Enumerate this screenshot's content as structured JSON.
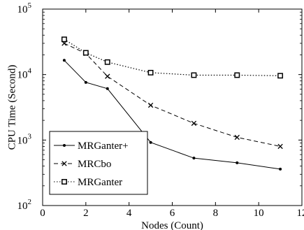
{
  "chart_data": {
    "type": "line",
    "xlabel": "Nodes (Count)",
    "ylabel": "CPU Time (Second)",
    "xlim": [
      0,
      12
    ],
    "ylim": [
      100,
      100000
    ],
    "yscale": "log",
    "grid": false,
    "legend_position": "bottom-left",
    "x_ticks": [
      0,
      2,
      4,
      6,
      8,
      10,
      12
    ],
    "x_tick_labels": [
      "0",
      "2",
      "4",
      "6",
      "8",
      "10",
      "12"
    ],
    "y_ticks": [
      100,
      1000,
      10000,
      100000
    ],
    "y_tick_exponents": [
      "2",
      "3",
      "4",
      "5"
    ],
    "y_tick_base": "10",
    "series": [
      {
        "name": "MRGanter+",
        "style": "solid",
        "marker": "dot",
        "color": "#000000",
        "x": [
          1,
          2,
          3,
          5,
          7,
          9,
          11
        ],
        "y": [
          16500,
          7600,
          6100,
          920,
          530,
          450,
          360
        ]
      },
      {
        "name": "MRCbo",
        "style": "dashed",
        "marker": "x",
        "color": "#000000",
        "x": [
          1,
          2,
          3,
          5,
          7,
          9,
          11
        ],
        "y": [
          30000,
          21000,
          9400,
          3400,
          1800,
          1100,
          800
        ]
      },
      {
        "name": "MRGanter",
        "style": "dotted",
        "marker": "square",
        "color": "#000000",
        "x": [
          1,
          2,
          3,
          5,
          7,
          9,
          11
        ],
        "y": [
          34500,
          21500,
          15500,
          10700,
          9800,
          9800,
          9600
        ]
      }
    ]
  }
}
